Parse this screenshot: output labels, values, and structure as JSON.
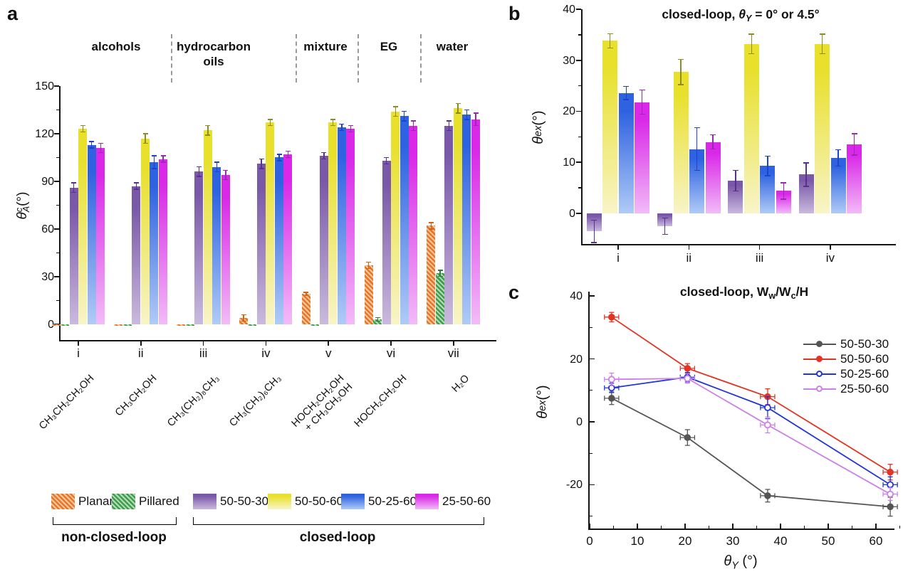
{
  "panels": {
    "a": {
      "label": "a",
      "section_headers": [
        "alcohols",
        "hydrocarbon oils",
        "mixture",
        "EG",
        "water"
      ],
      "ylabel": {
        "sym": "θ",
        "stack_top": "c",
        "stack_bottom": "A",
        "unit": " (°)"
      },
      "molecules": [
        [
          "CH₃CH₂CH₂OH"
        ],
        [
          "CH₃CH₂OH"
        ],
        [
          "CH₃(CH₂)₈CH₃"
        ],
        [
          "CH₃(CH₂)₆CH₃"
        ],
        [
          "HOCH₂CH₂OH",
          "+ CH₃CH₂OH"
        ],
        [
          "HOCH₂CH₂OH"
        ],
        [
          "H₂O"
        ]
      ],
      "legend_non_closed": {
        "label": "non-closed-loop",
        "items": [
          "Planar",
          "Pillared"
        ]
      },
      "legend_closed": {
        "label": "closed-loop",
        "items": [
          "50-50-30",
          "50-50-60",
          "50-25-60",
          "25-50-60"
        ]
      }
    },
    "b": {
      "label": "b",
      "title_segments": [
        {
          "t": "closed-loop, "
        },
        {
          "t": "θ",
          "italic": true
        },
        {
          "t": "Y",
          "sub": true,
          "italic": true
        },
        {
          "t": " = 0° or 4.5°"
        }
      ],
      "ylabel": {
        "sym": "θ",
        "sub": "ex",
        "unit": " (°)"
      }
    },
    "c": {
      "label": "c",
      "title_segments": [
        {
          "t": "closed-loop, W"
        },
        {
          "t": "w",
          "sub": true
        },
        {
          "t": "/W"
        },
        {
          "t": "c",
          "sub": true
        },
        {
          "t": "/H"
        }
      ],
      "ylabel": {
        "sym": "θ",
        "sub": "ex",
        "unit": " (°)"
      },
      "xlabel": {
        "sym": "θ",
        "sub": "Y",
        "unit": " (°)"
      }
    }
  },
  "colors": {
    "bar_series": {
      "Planar": {
        "hatch_dark": "#e8762a",
        "hatch_light": "#f9c9a0",
        "err": "#d95f13"
      },
      "Pillared": {
        "hatch_dark": "#3f9e4d",
        "hatch_light": "#b7dcba",
        "err": "#2e7d3a"
      },
      "50-50-30": {
        "top": "#7a58a8",
        "bottom": "#cabade",
        "err": "#5b2f91"
      },
      "50-50-60": {
        "top": "#e8e02b",
        "bottom": "#f8f4c8",
        "err": "#8f8d1f"
      },
      "50-25-60": {
        "top": "#2e62e0",
        "bottom": "#b0cbf7",
        "err": "#1d43c8"
      },
      "25-50-60": {
        "top": "#d928e8",
        "bottom": "#f2bbf7",
        "err": "#9c27b0"
      }
    },
    "line_series": {
      "50-50-30": "#555555",
      "50-50-60": "#e23323",
      "50-25-60": "#2135d8",
      "25-50-60": "#cc80e8"
    }
  },
  "chart_data": [
    {
      "id": "a",
      "type": "bar",
      "title": "",
      "xlabel": "",
      "ylabel": "θ_A^c (°)",
      "ylim": [
        -10,
        150
      ],
      "yticks": [
        0,
        30,
        60,
        90,
        120,
        150
      ],
      "legend_position": "bottom",
      "grid": false,
      "categories": [
        "i",
        "ii",
        "iii",
        "iv",
        "v",
        "vi",
        "vii"
      ],
      "category_molecules": [
        "CH₃CH₂CH₂OH",
        "CH₃CH₂OH",
        "CH₃(CH₂)₈CH₃",
        "CH₃(CH₂)₆CH₃",
        "HOCH₂CH₂OH + CH₃CH₂OH",
        "HOCH₂CH₂OH",
        "H₂O"
      ],
      "sections": [
        {
          "label": "alcohols",
          "categories": [
            "i",
            "ii"
          ]
        },
        {
          "label": "hydrocarbon oils",
          "categories": [
            "iii",
            "iv"
          ]
        },
        {
          "label": "mixture",
          "categories": [
            "v"
          ]
        },
        {
          "label": "EG",
          "categories": [
            "vi"
          ]
        },
        {
          "label": "water",
          "categories": [
            "vii"
          ]
        }
      ],
      "series": [
        {
          "name": "Planar",
          "values": [
            -1,
            -1,
            -1,
            4,
            19,
            37,
            62
          ],
          "errors": [
            1,
            1,
            1,
            2,
            1,
            2,
            2
          ]
        },
        {
          "name": "Pillared",
          "values": [
            -1,
            -1,
            -1,
            -1,
            -1,
            3,
            32
          ],
          "errors": [
            0.5,
            0.5,
            0.5,
            0.5,
            0.5,
            1,
            2
          ]
        },
        {
          "name": "50-50-30",
          "values": [
            86,
            87,
            96,
            101,
            106,
            103,
            125
          ],
          "errors": [
            3,
            2,
            3,
            3,
            2,
            2,
            3
          ]
        },
        {
          "name": "50-50-60",
          "values": [
            123,
            117,
            122,
            127,
            127,
            134,
            136
          ],
          "errors": [
            2,
            3,
            3,
            2,
            2,
            3,
            3
          ]
        },
        {
          "name": "50-25-60",
          "values": [
            113,
            102,
            99,
            105,
            124,
            131,
            132
          ],
          "errors": [
            2,
            4,
            3,
            2,
            2,
            3,
            3
          ]
        },
        {
          "name": "25-50-60",
          "values": [
            111,
            104,
            94,
            107,
            123,
            125,
            129
          ],
          "errors": [
            3,
            2,
            3,
            2,
            2,
            3,
            4
          ]
        }
      ]
    },
    {
      "id": "b",
      "type": "bar",
      "title": "closed-loop, θY = 0° or 4.5°",
      "xlabel": "",
      "ylabel": "θ_ex (°)",
      "ylim": [
        -6,
        40
      ],
      "yticks": [
        0,
        10,
        20,
        30,
        40
      ],
      "grid": false,
      "categories": [
        "i",
        "ii",
        "iii",
        "iv"
      ],
      "series": [
        {
          "name": "50-50-30",
          "values": [
            -3.5,
            -2.5,
            6.4,
            7.6
          ],
          "errors": [
            2.2,
            1.6,
            2.0,
            2.3
          ]
        },
        {
          "name": "50-50-60",
          "values": [
            33.8,
            27.7,
            33.2,
            33.2
          ],
          "errors": [
            1.4,
            2.5,
            1.9,
            1.9
          ]
        },
        {
          "name": "50-25-60",
          "values": [
            23.6,
            12.6,
            9.3,
            10.9
          ],
          "errors": [
            1.3,
            4.2,
            1.9,
            1.6
          ]
        },
        {
          "name": "25-50-60",
          "values": [
            21.8,
            14.0,
            4.4,
            13.5
          ],
          "errors": [
            2.4,
            1.4,
            1.6,
            2.1
          ]
        }
      ]
    },
    {
      "id": "c",
      "type": "line",
      "title": "closed-loop, Ww/Wc/H",
      "xlabel": "θY (°)",
      "ylabel": "θ_ex (°)",
      "xlim": [
        0,
        65
      ],
      "ylim": [
        -34,
        40
      ],
      "xticks": [
        0,
        10,
        20,
        30,
        40,
        50,
        60
      ],
      "yticks": [
        -20,
        0,
        20,
        40
      ],
      "legend_position": "top-right",
      "grid": false,
      "x": [
        4.6,
        20.5,
        37.3,
        63
      ],
      "xerr": 1.5,
      "series": [
        {
          "name": "50-50-30",
          "marker": "filled",
          "values": [
            7.5,
            -5,
            -23.5,
            -27
          ],
          "yerr": [
            2,
            2.5,
            2,
            3
          ]
        },
        {
          "name": "50-50-60",
          "marker": "filled",
          "values": [
            33.3,
            17,
            8,
            -16
          ],
          "yerr": [
            1.5,
            1.5,
            2.5,
            2.5
          ]
        },
        {
          "name": "50-25-60",
          "marker": "open",
          "values": [
            10.8,
            14.2,
            4.5,
            -20
          ],
          "yerr": [
            1.5,
            1.5,
            3.5,
            2.5
          ]
        },
        {
          "name": "25-50-60",
          "marker": "open",
          "values": [
            13.5,
            13.8,
            -1,
            -23
          ],
          "yerr": [
            2,
            1.5,
            2.5,
            2
          ]
        }
      ]
    }
  ]
}
